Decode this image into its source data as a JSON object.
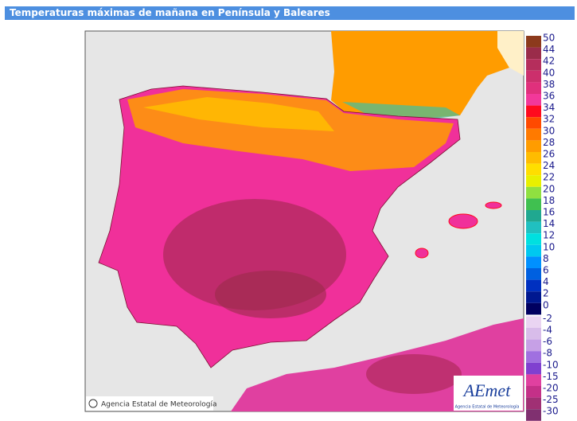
{
  "header": {
    "title": "Temperaturas máximas de mañana en Península y Baleares"
  },
  "map": {
    "credit": "Agencia Estatal de Meteorología",
    "logo": "AEmet",
    "logo_subtitle": "Agencia Estatal de Meteorología"
  },
  "legend": [
    {
      "value": 50,
      "color": "#8c3a1c"
    },
    {
      "value": 44,
      "color": "#9a2c4a"
    },
    {
      "value": 42,
      "color": "#b52e5c"
    },
    {
      "value": 40,
      "color": "#cc2f6c"
    },
    {
      "value": 38,
      "color": "#e0307c"
    },
    {
      "value": 36,
      "color": "#f2389a"
    },
    {
      "value": 34,
      "color": "#ff0a1e"
    },
    {
      "value": 32,
      "color": "#ff4a00"
    },
    {
      "value": 30,
      "color": "#ff7a00"
    },
    {
      "value": 28,
      "color": "#ff9c00"
    },
    {
      "value": 26,
      "color": "#ffbc00"
    },
    {
      "value": 24,
      "color": "#ffde00"
    },
    {
      "value": 22,
      "color": "#e8f000"
    },
    {
      "value": 20,
      "color": "#90e040"
    },
    {
      "value": 18,
      "color": "#40c050"
    },
    {
      "value": 16,
      "color": "#20a890"
    },
    {
      "value": 14,
      "color": "#20c0c0"
    },
    {
      "value": 12,
      "color": "#00e0e0"
    },
    {
      "value": 10,
      "color": "#00c8f0"
    },
    {
      "value": 8,
      "color": "#0090ff"
    },
    {
      "value": 6,
      "color": "#0060e0"
    },
    {
      "value": 4,
      "color": "#0030c0"
    },
    {
      "value": 2,
      "color": "#001890"
    },
    {
      "value": 0,
      "color": "#000060"
    },
    {
      "value": -2,
      "color": "#ead4f2"
    },
    {
      "value": -4,
      "color": "#d8bcea"
    },
    {
      "value": -6,
      "color": "#c6a0e6"
    },
    {
      "value": -8,
      "color": "#a070e0"
    },
    {
      "value": -10,
      "color": "#8040d0"
    },
    {
      "value": -15,
      "color": "#e040a0"
    },
    {
      "value": -20,
      "color": "#c43088"
    },
    {
      "value": -25,
      "color": "#a03074"
    },
    {
      "value": -30,
      "color": "#803070"
    }
  ]
}
